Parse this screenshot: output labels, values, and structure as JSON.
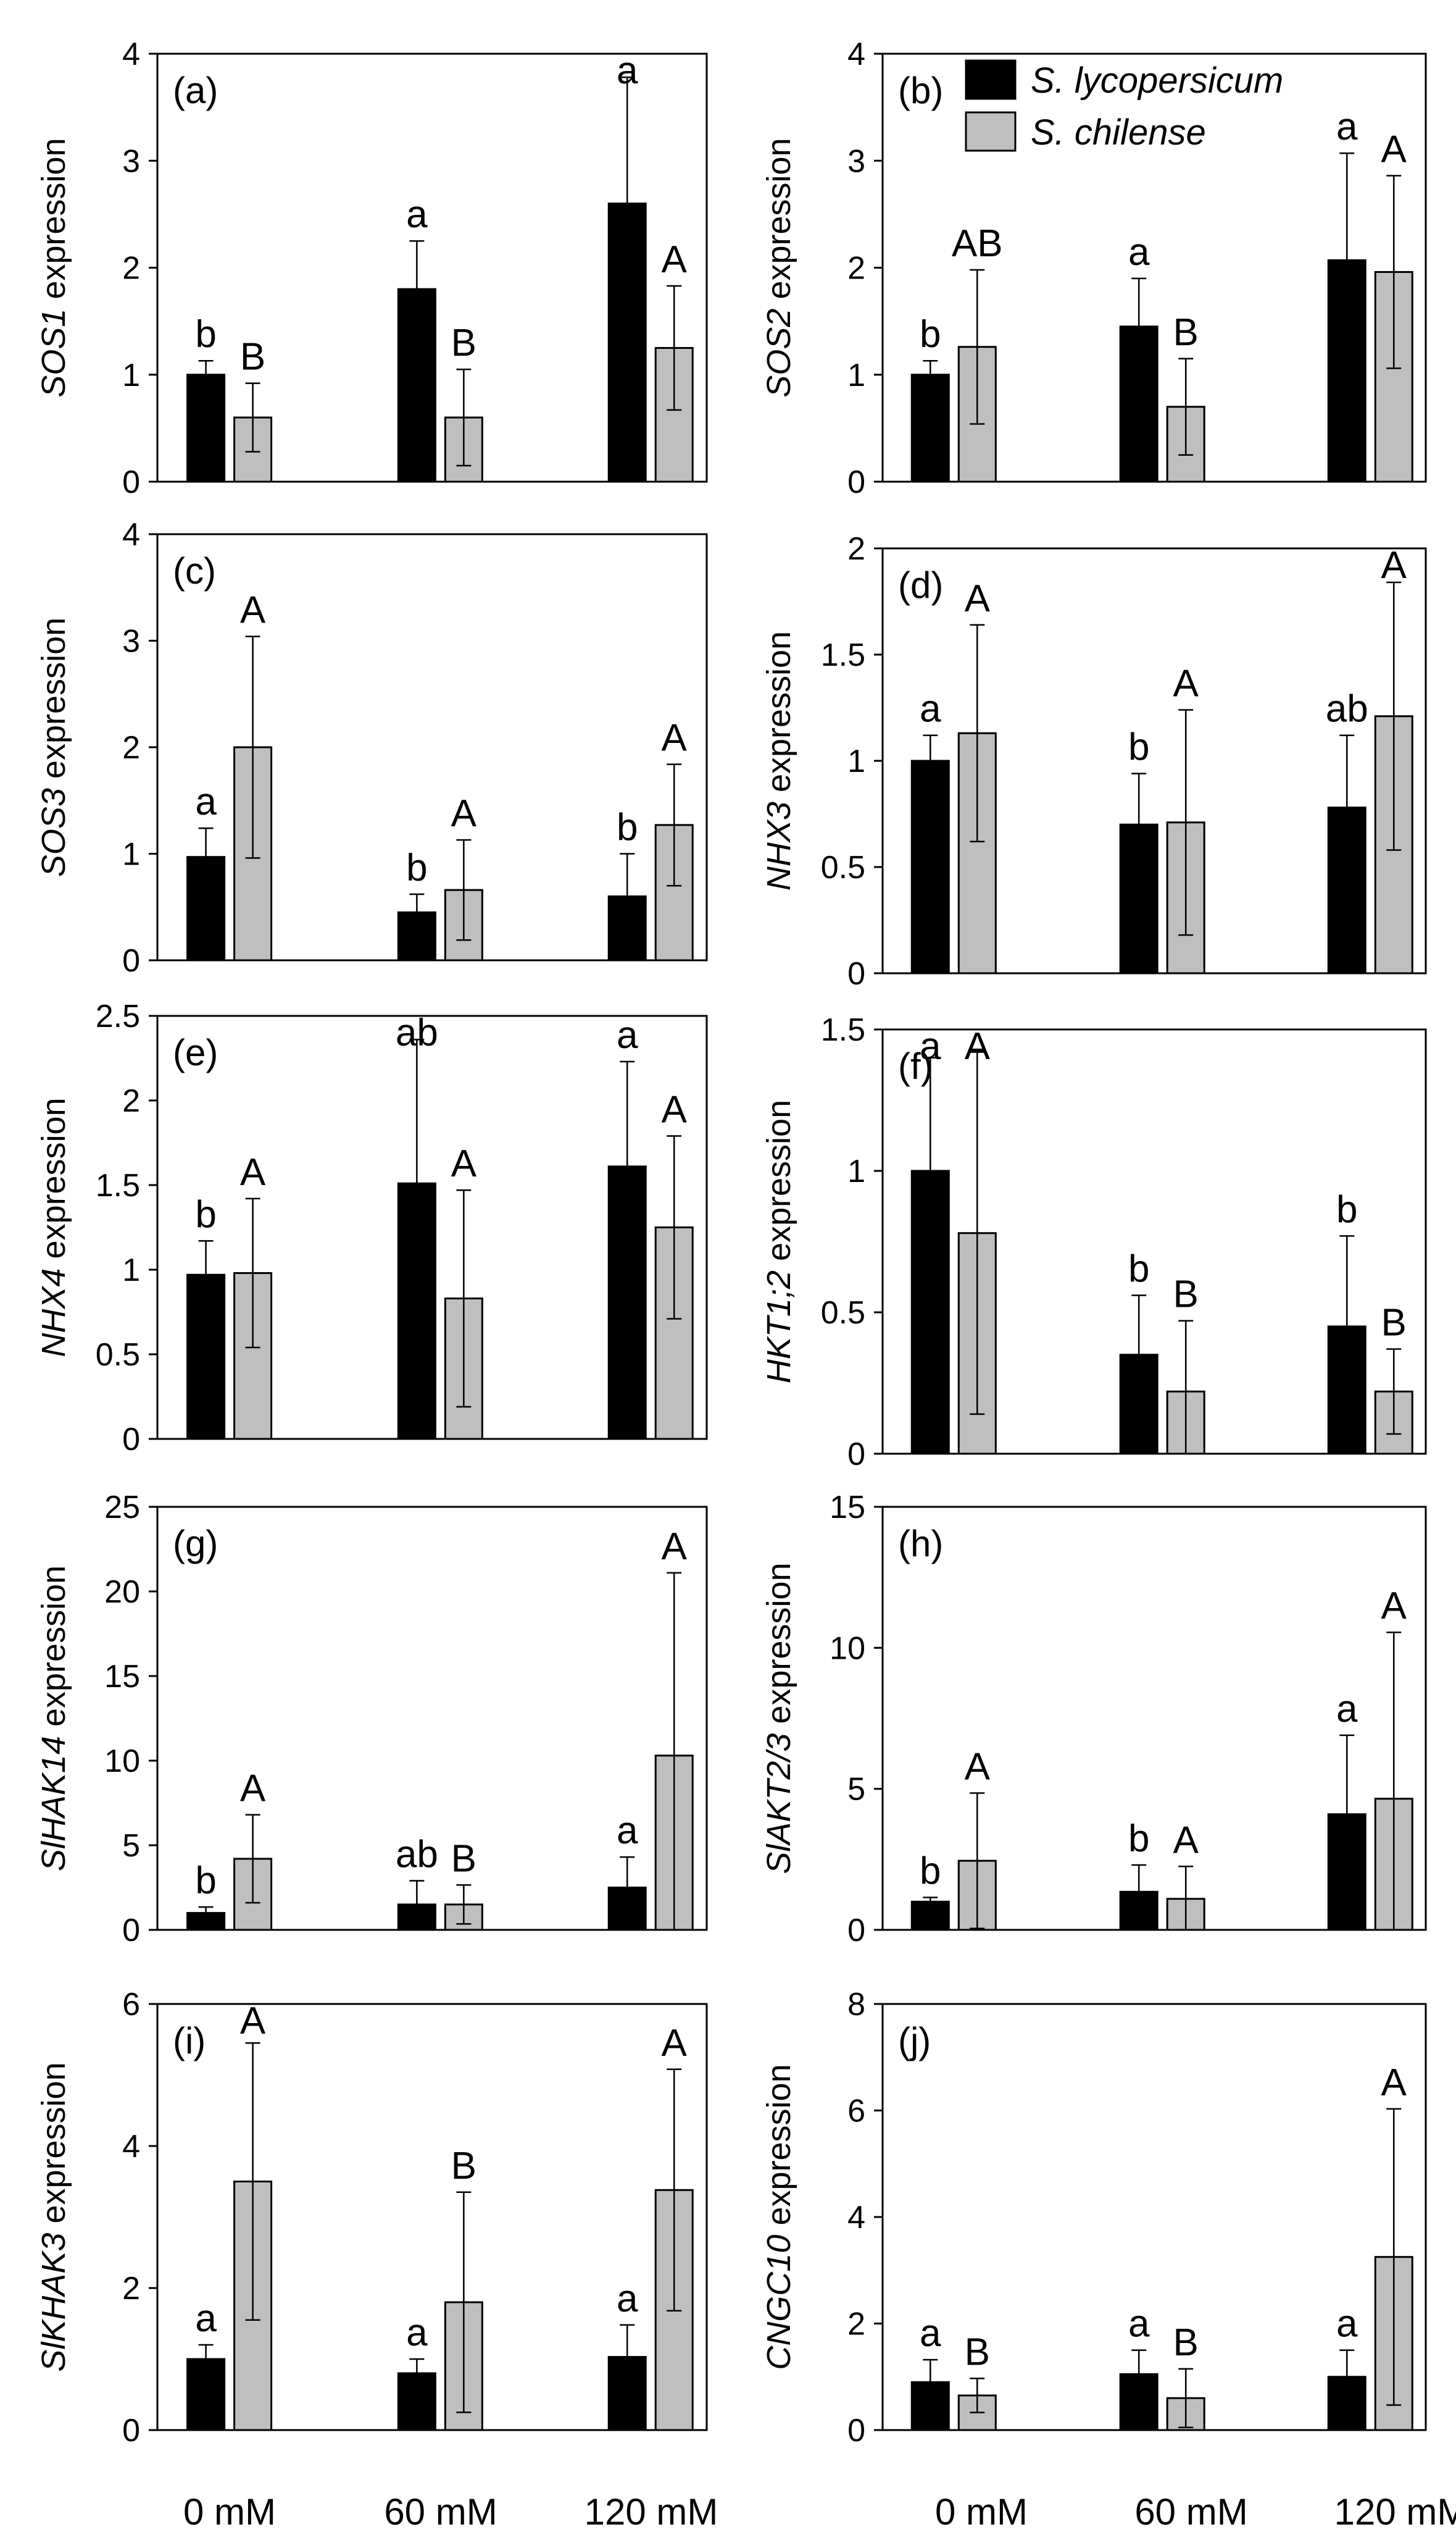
{
  "legend": {
    "series": [
      {
        "name": "S. lycopersicum",
        "color": "#000000"
      },
      {
        "name": "S. chilense",
        "color": "#bfbfbf"
      }
    ]
  },
  "categories": [
    "0 mM",
    "60 mM",
    "120 mM"
  ],
  "chart_data": [
    {
      "type": "bar",
      "panel": "(a)",
      "gene": "SOS1",
      "ylabel_suffix": " expression",
      "ylim": [
        0,
        4
      ],
      "yticks": [
        0,
        1,
        2,
        3,
        4
      ],
      "ytick_labels": [
        "0",
        "1",
        "2",
        "3",
        "4"
      ],
      "categories": [
        "0 mM",
        "60 mM",
        "120 mM"
      ],
      "series": [
        {
          "name": "S. lycopersicum",
          "values": [
            1.0,
            1.8,
            2.6
          ],
          "errors": [
            0.13,
            0.45,
            1.18
          ],
          "letters": [
            "b",
            "a",
            "a"
          ]
        },
        {
          "name": "S. chilense",
          "values": [
            0.6,
            0.6,
            1.25
          ],
          "errors": [
            0.32,
            0.45,
            0.58
          ],
          "letters": [
            "B",
            "B",
            "A"
          ]
        }
      ]
    },
    {
      "type": "bar",
      "panel": "(b)",
      "gene": "SOS2",
      "ylabel_suffix": " expression",
      "ylim": [
        0,
        4
      ],
      "yticks": [
        0,
        1,
        2,
        3,
        4
      ],
      "ytick_labels": [
        "0",
        "1",
        "2",
        "3",
        "4"
      ],
      "categories": [
        "0 mM",
        "60 mM",
        "120 mM"
      ],
      "series": [
        {
          "name": "S. lycopersicum",
          "values": [
            1.0,
            1.45,
            2.07
          ],
          "errors": [
            0.13,
            0.45,
            1.0
          ],
          "letters": [
            "b",
            "a",
            "a"
          ]
        },
        {
          "name": "S. chilense",
          "values": [
            1.26,
            0.7,
            1.96
          ],
          "errors": [
            0.72,
            0.45,
            0.9
          ],
          "letters": [
            "AB",
            "B",
            "A"
          ]
        }
      ]
    },
    {
      "type": "bar",
      "panel": "(c)",
      "gene": "SOS3",
      "ylabel_suffix": " expression",
      "ylim": [
        0,
        4
      ],
      "yticks": [
        0,
        1,
        2,
        3,
        4
      ],
      "ytick_labels": [
        "0",
        "1",
        "2",
        "3",
        "4"
      ],
      "categories": [
        "0 mM",
        "60 mM",
        "120 mM"
      ],
      "series": [
        {
          "name": "S. lycopersicum",
          "values": [
            0.97,
            0.45,
            0.6
          ],
          "errors": [
            0.27,
            0.17,
            0.4
          ],
          "letters": [
            "a",
            "b",
            "b"
          ]
        },
        {
          "name": "S. chilense",
          "values": [
            2.0,
            0.66,
            1.27
          ],
          "errors": [
            1.04,
            0.47,
            0.57
          ],
          "letters": [
            "A",
            "A",
            "A"
          ]
        }
      ]
    },
    {
      "type": "bar",
      "panel": "(d)",
      "gene": "NHX3",
      "ylabel_suffix": " expression",
      "ylim": [
        0,
        2
      ],
      "yticks": [
        0,
        0.5,
        1,
        1.5,
        2
      ],
      "ytick_labels": [
        "0",
        "0.5",
        "1",
        "1.5",
        "2"
      ],
      "categories": [
        "0 mM",
        "60 mM",
        "120 mM"
      ],
      "series": [
        {
          "name": "S. lycopersicum",
          "values": [
            1.0,
            0.7,
            0.78
          ],
          "errors": [
            0.12,
            0.24,
            0.34
          ],
          "letters": [
            "a",
            "b",
            "ab"
          ]
        },
        {
          "name": "S. chilense",
          "values": [
            1.13,
            0.71,
            1.21
          ],
          "errors": [
            0.51,
            0.53,
            0.63
          ],
          "letters": [
            "A",
            "A",
            "A"
          ]
        }
      ]
    },
    {
      "type": "bar",
      "panel": "(e)",
      "gene": "NHX4",
      "ylabel_suffix": " expression",
      "ylim": [
        0,
        2.5
      ],
      "yticks": [
        0,
        0.5,
        1,
        1.5,
        2,
        2.5
      ],
      "ytick_labels": [
        "0",
        "0.5",
        "1",
        "1.5",
        "2",
        "2.5"
      ],
      "categories": [
        "0 mM",
        "60 mM",
        "120 mM"
      ],
      "series": [
        {
          "name": "S. lycopersicum",
          "values": [
            0.97,
            1.51,
            1.61
          ],
          "errors": [
            0.2,
            0.85,
            0.62
          ],
          "letters": [
            "b",
            "ab",
            "a"
          ]
        },
        {
          "name": "S. chilense",
          "values": [
            0.98,
            0.83,
            1.25
          ],
          "errors": [
            0.44,
            0.64,
            0.54
          ],
          "letters": [
            "A",
            "A",
            "A"
          ]
        }
      ]
    },
    {
      "type": "bar",
      "panel": "(f)",
      "gene": "HKT1;2",
      "ylabel_suffix": " expression",
      "ylim": [
        0,
        1.5
      ],
      "yticks": [
        0,
        0.5,
        1,
        1.5
      ],
      "ytick_labels": [
        "0",
        "0.5",
        "1",
        "1.5"
      ],
      "categories": [
        "0 mM",
        "60 mM",
        "120 mM"
      ],
      "series": [
        {
          "name": "S. lycopersicum",
          "values": [
            1.0,
            0.35,
            0.45
          ],
          "errors": [
            0.4,
            0.21,
            0.32
          ],
          "letters": [
            "a",
            "b",
            "b"
          ]
        },
        {
          "name": "S. chilense",
          "values": [
            0.78,
            0.22,
            0.22
          ],
          "errors": [
            0.64,
            0.25,
            0.15
          ],
          "letters": [
            "A",
            "B",
            "B"
          ]
        }
      ]
    },
    {
      "type": "bar",
      "panel": "(g)",
      "gene": "SlHAK14",
      "ylabel_suffix": " expression",
      "ylim": [
        0,
        25
      ],
      "yticks": [
        0,
        5,
        10,
        15,
        20,
        25
      ],
      "ytick_labels": [
        "0",
        "5",
        "10",
        "15",
        "20",
        "25"
      ],
      "categories": [
        "0 mM",
        "60 mM",
        "120 mM"
      ],
      "series": [
        {
          "name": "S. lycopersicum",
          "values": [
            1.0,
            1.5,
            2.5
          ],
          "errors": [
            0.35,
            1.4,
            1.8
          ],
          "letters": [
            "b",
            "ab",
            "a"
          ]
        },
        {
          "name": "S. chilense",
          "values": [
            4.2,
            1.5,
            10.3
          ],
          "errors": [
            2.6,
            1.15,
            10.8
          ],
          "letters": [
            "A",
            "B",
            "A"
          ]
        }
      ]
    },
    {
      "type": "bar",
      "panel": "(h)",
      "gene": "SlAKT2/3",
      "ylabel_suffix": " expression",
      "ylim": [
        0,
        15
      ],
      "yticks": [
        0,
        5,
        10,
        15
      ],
      "ytick_labels": [
        "0",
        "5",
        "10",
        "15"
      ],
      "categories": [
        "0 mM",
        "60 mM",
        "120 mM"
      ],
      "series": [
        {
          "name": "S. lycopersicum",
          "values": [
            1.0,
            1.35,
            4.1
          ],
          "errors": [
            0.15,
            0.95,
            2.8
          ],
          "letters": [
            "b",
            "b",
            "a"
          ]
        },
        {
          "name": "S. chilense",
          "values": [
            2.45,
            1.1,
            4.65
          ],
          "errors": [
            2.4,
            1.15,
            5.9
          ],
          "letters": [
            "A",
            "A",
            "A"
          ]
        }
      ]
    },
    {
      "type": "bar",
      "panel": "(i)",
      "gene": "SlKHAK3",
      "ylabel_suffix": " expression",
      "ylim": [
        0,
        6
      ],
      "yticks": [
        0,
        2,
        4,
        6
      ],
      "ytick_labels": [
        "0",
        "2",
        "4",
        "6"
      ],
      "categories": [
        "0 mM",
        "60 mM",
        "120 mM"
      ],
      "series": [
        {
          "name": "S. lycopersicum",
          "values": [
            1.0,
            0.8,
            1.03
          ],
          "errors": [
            0.2,
            0.2,
            0.45
          ],
          "letters": [
            "a",
            "a",
            "a"
          ]
        },
        {
          "name": "S. chilense",
          "values": [
            3.5,
            1.8,
            3.38
          ],
          "errors": [
            1.95,
            1.55,
            1.7
          ],
          "letters": [
            "A",
            "B",
            "A"
          ]
        }
      ]
    },
    {
      "type": "bar",
      "panel": "(j)",
      "gene": "CNGC10",
      "ylabel_suffix": " expression",
      "ylim": [
        0,
        8
      ],
      "yticks": [
        0,
        2,
        4,
        6,
        8
      ],
      "ytick_labels": [
        "0",
        "2",
        "4",
        "6",
        "8"
      ],
      "categories": [
        "0 mM",
        "60 mM",
        "120 mM"
      ],
      "series": [
        {
          "name": "S. lycopersicum",
          "values": [
            0.9,
            1.05,
            1.0
          ],
          "errors": [
            0.42,
            0.45,
            0.5
          ],
          "letters": [
            "a",
            "a",
            "a"
          ]
        },
        {
          "name": "S. chilense",
          "values": [
            0.65,
            0.6,
            3.25
          ],
          "errors": [
            0.32,
            0.55,
            2.78
          ],
          "letters": [
            "B",
            "B",
            "A"
          ]
        }
      ]
    }
  ]
}
